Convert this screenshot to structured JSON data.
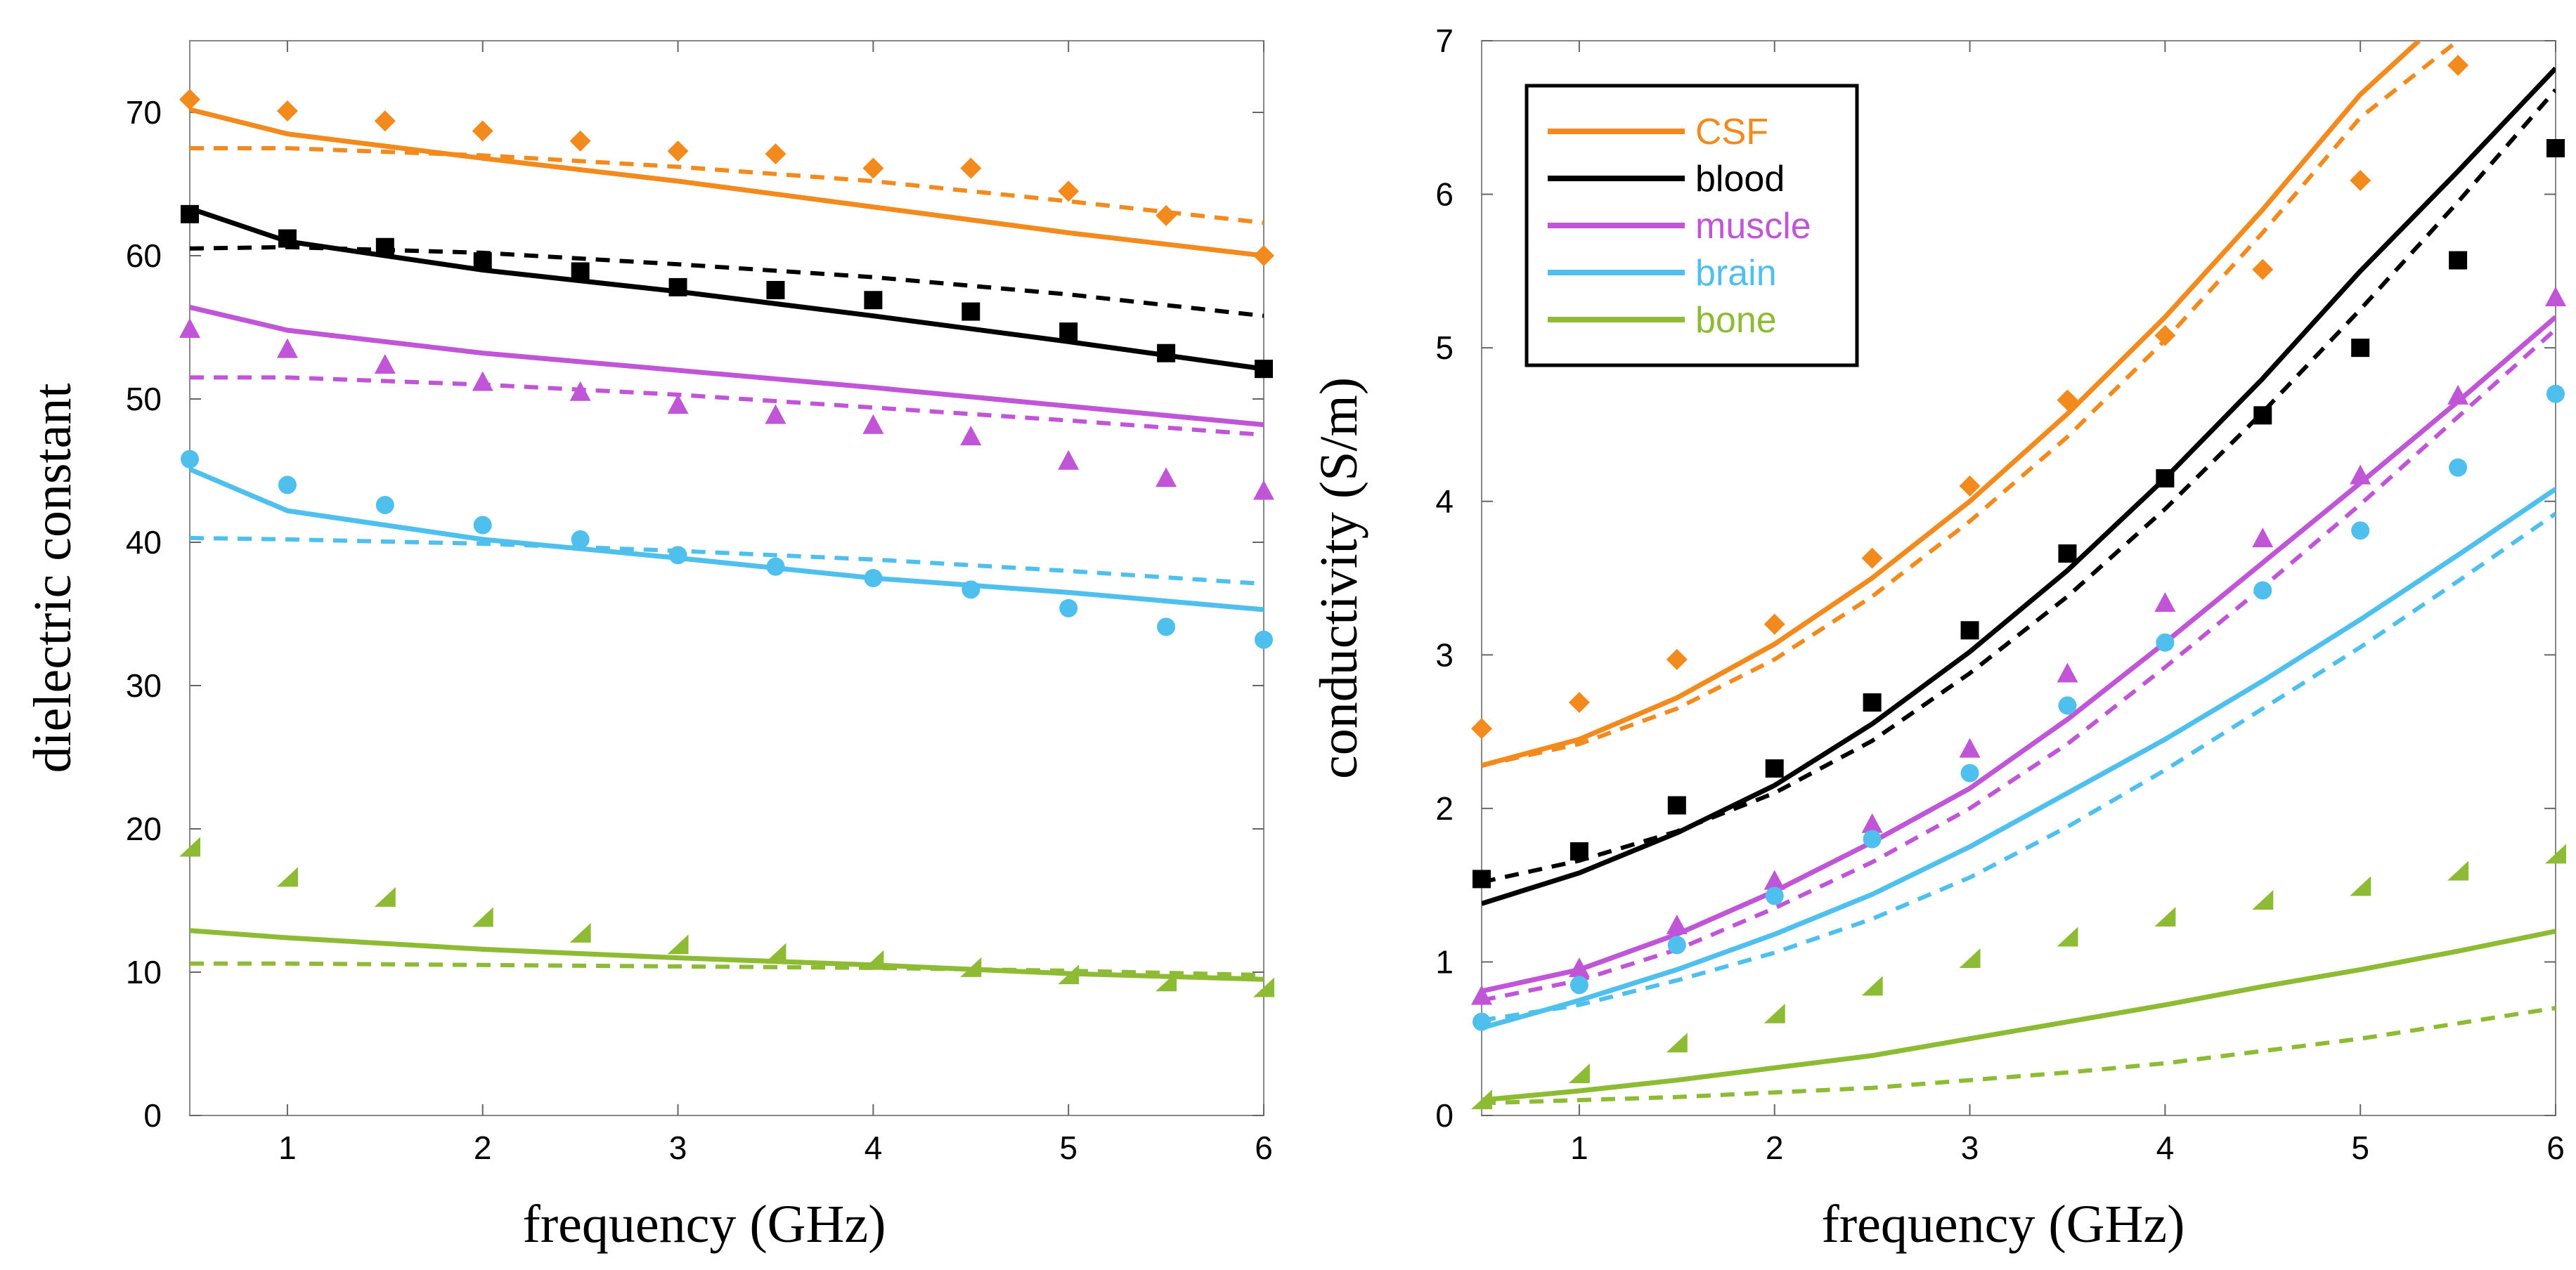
{
  "colors": {
    "CSF": "#f28a1d",
    "blood": "#000000",
    "muscle": "#c055d8",
    "brain": "#4fc0ee",
    "bone": "#8dbb34"
  },
  "legend": [
    "CSF",
    "blood",
    "muscle",
    "brain",
    "bone"
  ],
  "chart_data": [
    {
      "type": "line",
      "id": "left",
      "xlabel": "frequency (GHz)",
      "ylabel": "dielectric constant",
      "xlim": [
        0.5,
        6
      ],
      "ylim": [
        0,
        75
      ],
      "xticks": [
        1,
        2,
        3,
        4,
        5,
        6
      ],
      "yticks": [
        0,
        10,
        20,
        30,
        40,
        50,
        60,
        70
      ],
      "series": [
        {
          "name": "CSF",
          "marker": "diamond",
          "solid": {
            "x": [
              0.5,
              1,
              2,
              3,
              4,
              5,
              6
            ],
            "y": [
              70.2,
              68.5,
              66.8,
              65.2,
              63.4,
              61.6,
              60.0
            ]
          },
          "dashed": {
            "x": [
              0.5,
              1,
              2,
              3,
              4,
              5,
              6
            ],
            "y": [
              67.5,
              67.5,
              67.0,
              66.2,
              65.2,
              63.8,
              62.3
            ]
          },
          "points": {
            "x": [
              0.5,
              1,
              1.5,
              2,
              2.5,
              3,
              3.5,
              4,
              4.5,
              5,
              5.5,
              6
            ],
            "y": [
              70.9,
              70.1,
              69.4,
              68.7,
              68.0,
              67.3,
              67.1,
              66.1,
              66.1,
              64.5,
              62.8,
              60.0
            ]
          }
        },
        {
          "name": "blood",
          "marker": "square",
          "solid": {
            "x": [
              0.5,
              1,
              2,
              3,
              4,
              5,
              6
            ],
            "y": [
              63.3,
              61.0,
              59.0,
              57.5,
              55.8,
              54.0,
              52.1
            ]
          },
          "dashed": {
            "x": [
              0.5,
              1,
              2,
              3,
              4,
              5,
              6
            ],
            "y": [
              60.5,
              60.6,
              60.2,
              59.4,
              58.5,
              57.3,
              55.8
            ]
          },
          "points": {
            "x": [
              0.5,
              1,
              1.5,
              2,
              2.5,
              3,
              3.5,
              4,
              4.5,
              5,
              5.5,
              6
            ],
            "y": [
              62.9,
              61.2,
              60.6,
              59.6,
              58.9,
              57.8,
              57.6,
              56.9,
              56.1,
              54.7,
              53.2,
              52.1
            ]
          }
        },
        {
          "name": "muscle",
          "marker": "triangle",
          "solid": {
            "x": [
              0.5,
              1,
              2,
              3,
              4,
              5,
              6
            ],
            "y": [
              56.4,
              54.8,
              53.2,
              52.0,
              50.8,
              49.5,
              48.2
            ]
          },
          "dashed": {
            "x": [
              0.5,
              1,
              2,
              3,
              4,
              5,
              6
            ],
            "y": [
              51.5,
              51.5,
              51.0,
              50.3,
              49.4,
              48.5,
              47.5
            ]
          },
          "points": {
            "x": [
              0.5,
              1,
              1.5,
              2,
              2.5,
              3,
              3.5,
              4,
              4.5,
              5,
              5.5,
              6
            ],
            "y": [
              54.9,
              53.5,
              52.4,
              51.2,
              50.5,
              49.6,
              48.9,
              48.2,
              47.4,
              45.7,
              44.5,
              43.6
            ]
          }
        },
        {
          "name": "brain",
          "marker": "circle",
          "solid": {
            "x": [
              0.5,
              1,
              2,
              3,
              4,
              5,
              6
            ],
            "y": [
              45.1,
              42.2,
              40.2,
              38.9,
              37.5,
              36.5,
              35.3
            ]
          },
          "dashed": {
            "x": [
              0.5,
              1,
              2,
              3,
              4,
              5,
              6
            ],
            "y": [
              40.3,
              40.2,
              39.9,
              39.4,
              38.8,
              38.0,
              37.1
            ]
          },
          "points": {
            "x": [
              0.5,
              1,
              1.5,
              2,
              2.5,
              3,
              3.5,
              4,
              4.5,
              5,
              5.5,
              6
            ],
            "y": [
              45.8,
              44.0,
              42.6,
              41.2,
              40.2,
              39.1,
              38.3,
              37.5,
              36.7,
              35.4,
              34.1,
              33.2
            ]
          }
        },
        {
          "name": "bone",
          "marker": "right-triangle",
          "solid": {
            "x": [
              0.5,
              1,
              2,
              3,
              4,
              5,
              6
            ],
            "y": [
              12.9,
              12.4,
              11.6,
              11.0,
              10.5,
              9.9,
              9.5
            ]
          },
          "dashed": {
            "x": [
              0.5,
              1,
              2,
              3,
              4,
              5,
              6
            ],
            "y": [
              10.6,
              10.6,
              10.5,
              10.4,
              10.3,
              10.1,
              9.8
            ]
          },
          "points": {
            "x": [
              0.5,
              1,
              1.5,
              2,
              2.5,
              3,
              3.5,
              4,
              4.5,
              5,
              5.5,
              6
            ],
            "y": [
              18.7,
              16.6,
              15.2,
              13.8,
              12.7,
              11.9,
              11.3,
              10.8,
              10.3,
              9.8,
              9.3,
              8.9
            ]
          }
        }
      ]
    },
    {
      "type": "line",
      "id": "right",
      "xlabel": "frequency (GHz)",
      "ylabel": "conductivity (S/m)",
      "xlim": [
        0.5,
        6
      ],
      "ylim": [
        0,
        7
      ],
      "xticks": [
        1,
        2,
        3,
        4,
        5,
        6
      ],
      "yticks": [
        0,
        1,
        2,
        3,
        4,
        5,
        6,
        7
      ],
      "legend_position": "top-left",
      "series": [
        {
          "name": "CSF",
          "marker": "diamond",
          "solid": {
            "x": [
              0.5,
              1,
              1.5,
              2,
              2.5,
              3,
              3.5,
              4,
              4.5,
              5,
              5.3
            ],
            "y": [
              2.28,
              2.45,
              2.72,
              3.07,
              3.5,
              4.0,
              4.57,
              5.2,
              5.9,
              6.65,
              7.0
            ]
          },
          "dashed": {
            "x": [
              0.5,
              1,
              1.5,
              2,
              2.5,
              3,
              3.5,
              4,
              4.5,
              5,
              5.5
            ],
            "y": [
              2.28,
              2.42,
              2.65,
              2.97,
              3.38,
              3.87,
              4.42,
              5.05,
              5.75,
              6.5,
              7.0
            ]
          },
          "points": {
            "x": [
              0.5,
              1,
              1.5,
              2,
              2.5,
              3,
              3.5,
              4,
              4.5,
              5,
              5.5
            ],
            "y": [
              2.52,
              2.69,
              2.97,
              3.2,
              3.63,
              4.1,
              4.66,
              5.08,
              5.51,
              6.09,
              6.84
            ]
          }
        },
        {
          "name": "blood",
          "marker": "square",
          "solid": {
            "x": [
              0.5,
              1,
              1.5,
              2,
              2.5,
              3,
              3.5,
              4,
              4.5,
              5,
              5.5,
              6
            ],
            "y": [
              1.38,
              1.58,
              1.84,
              2.15,
              2.55,
              3.02,
              3.55,
              4.15,
              4.8,
              5.5,
              6.15,
              6.82
            ]
          },
          "dashed": {
            "x": [
              0.5,
              1,
              1.5,
              2,
              2.5,
              3,
              3.5,
              4,
              4.5,
              5,
              5.5,
              6
            ],
            "y": [
              1.52,
              1.66,
              1.85,
              2.1,
              2.44,
              2.88,
              3.38,
              3.95,
              4.58,
              5.25,
              5.95,
              6.68
            ]
          },
          "points": {
            "x": [
              0.5,
              1,
              1.5,
              2,
              2.5,
              3,
              3.5,
              4,
              4.5,
              5,
              5.5,
              6
            ],
            "y": [
              1.54,
              1.72,
              2.02,
              2.26,
              2.69,
              3.16,
              3.66,
              4.15,
              4.56,
              5.0,
              5.57,
              6.3
            ]
          }
        },
        {
          "name": "muscle",
          "marker": "triangle",
          "solid": {
            "x": [
              0.5,
              1,
              1.5,
              2,
              2.5,
              3,
              3.5,
              4,
              4.5,
              5,
              5.5,
              6
            ],
            "y": [
              0.81,
              0.95,
              1.18,
              1.46,
              1.78,
              2.13,
              2.58,
              3.08,
              3.6,
              4.12,
              4.65,
              5.2
            ]
          },
          "dashed": {
            "x": [
              0.5,
              1,
              1.5,
              2,
              2.5,
              3,
              3.5,
              4,
              4.5,
              5,
              5.5,
              6
            ],
            "y": [
              0.75,
              0.88,
              1.08,
              1.35,
              1.65,
              2.0,
              2.42,
              2.92,
              3.44,
              3.98,
              4.55,
              5.12
            ]
          },
          "points": {
            "x": [
              0.5,
              1,
              1.5,
              2,
              2.5,
              3,
              3.5,
              4,
              4.5,
              5,
              5.5,
              6
            ],
            "y": [
              0.78,
              0.96,
              1.24,
              1.53,
              1.9,
              2.39,
              2.88,
              3.34,
              3.76,
              4.17,
              4.69,
              5.33
            ]
          }
        },
        {
          "name": "brain",
          "marker": "circle",
          "solid": {
            "x": [
              0.5,
              1,
              1.5,
              2,
              2.5,
              3,
              3.5,
              4,
              4.5,
              5,
              5.5,
              6
            ],
            "y": [
              0.57,
              0.75,
              0.95,
              1.18,
              1.44,
              1.75,
              2.1,
              2.45,
              2.83,
              3.23,
              3.65,
              4.08
            ]
          },
          "dashed": {
            "x": [
              0.5,
              1,
              1.5,
              2,
              2.5,
              3,
              3.5,
              4,
              4.5,
              5,
              5.5,
              6
            ],
            "y": [
              0.62,
              0.72,
              0.88,
              1.06,
              1.28,
              1.55,
              1.88,
              2.25,
              2.65,
              3.05,
              3.48,
              3.92
            ]
          },
          "points": {
            "x": [
              0.5,
              1,
              1.5,
              2,
              2.5,
              3,
              3.5,
              4,
              4.5,
              5,
              5.5,
              6
            ],
            "y": [
              0.61,
              0.85,
              1.11,
              1.43,
              1.8,
              2.23,
              2.67,
              3.08,
              3.42,
              3.81,
              4.22,
              4.7
            ]
          }
        },
        {
          "name": "bone",
          "marker": "right-triangle",
          "solid": {
            "x": [
              0.5,
              1,
              1.5,
              2,
              2.5,
              3,
              3.5,
              4,
              4.5,
              5,
              5.5,
              6
            ],
            "y": [
              0.1,
              0.16,
              0.23,
              0.31,
              0.39,
              0.5,
              0.61,
              0.72,
              0.84,
              0.95,
              1.07,
              1.2
            ]
          },
          "dashed": {
            "x": [
              0.5,
              1,
              1.5,
              2,
              2.5,
              3,
              3.5,
              4,
              4.5,
              5,
              5.5,
              6
            ],
            "y": [
              0.08,
              0.1,
              0.12,
              0.15,
              0.18,
              0.23,
              0.28,
              0.34,
              0.42,
              0.5,
              0.6,
              0.7
            ]
          },
          "points": {
            "x": [
              0.5,
              1,
              1.5,
              2,
              2.5,
              3,
              3.5,
              4,
              4.5,
              5,
              5.5,
              6
            ],
            "y": [
              0.1,
              0.27,
              0.47,
              0.66,
              0.84,
              1.02,
              1.16,
              1.29,
              1.4,
              1.49,
              1.59,
              1.7
            ]
          }
        }
      ]
    }
  ]
}
